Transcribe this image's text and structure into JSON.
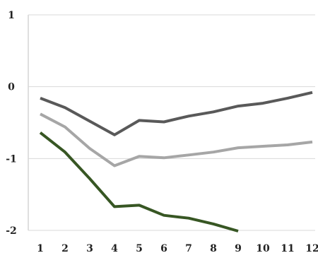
{
  "chart_data": {
    "type": "line",
    "x": [
      1,
      2,
      3,
      4,
      5,
      6,
      7,
      8,
      9,
      10,
      11,
      12
    ],
    "x_tick_labels": [
      "1",
      "2",
      "3",
      "4",
      "5",
      "6",
      "7",
      "8",
      "9",
      "10",
      "11",
      "12"
    ],
    "y_tick_labels": [
      "1",
      "0",
      "-1",
      "-2"
    ],
    "y_ticks": [
      1,
      0,
      -1,
      -2
    ],
    "ylim": [
      -2,
      1
    ],
    "grid": true,
    "legend": "none",
    "series": [
      {
        "color": "#595959",
        "values": [
          -0.16,
          -0.29,
          -0.48,
          -0.67,
          -0.47,
          -0.49,
          -0.41,
          -0.35,
          -0.27,
          -0.23,
          -0.16,
          -0.08
        ]
      },
      {
        "color": "#a6a6a6",
        "values": [
          -0.38,
          -0.56,
          -0.86,
          -1.1,
          -0.97,
          -0.99,
          -0.95,
          -0.91,
          -0.85,
          -0.83,
          -0.81,
          -0.77
        ]
      },
      {
        "color": "#375623",
        "values": [
          -0.64,
          -0.91,
          -1.28,
          -1.67,
          -1.65,
          -1.79,
          -1.83,
          -1.91,
          -2.01,
          null,
          null,
          null
        ]
      }
    ]
  }
}
